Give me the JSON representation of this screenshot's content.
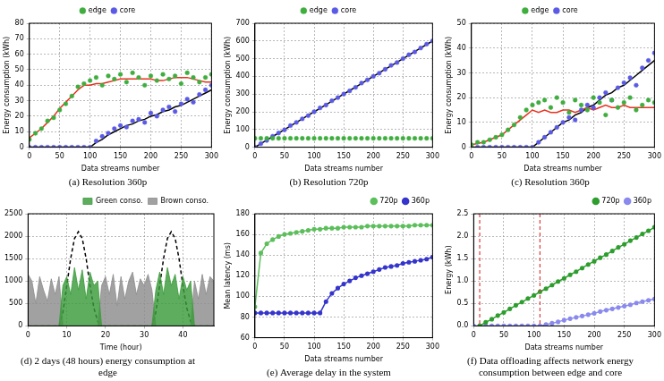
{
  "chart_data": [
    {
      "type": "scatter",
      "title": "(a) Resolution 360p",
      "xlabel": "Data streams number",
      "ylabel": "Energy consumption (kWh)",
      "xlim": [
        0,
        300
      ],
      "xticks": [
        0,
        50,
        100,
        150,
        200,
        250,
        300
      ],
      "ylim": [
        0,
        80
      ],
      "yticks": [
        0,
        10,
        20,
        30,
        40,
        50,
        60,
        70,
        80
      ],
      "grid": true,
      "legend": "top",
      "x": [
        0,
        10,
        20,
        30,
        40,
        50,
        60,
        70,
        80,
        90,
        100,
        110,
        120,
        130,
        140,
        150,
        160,
        170,
        180,
        190,
        200,
        210,
        220,
        230,
        240,
        250,
        260,
        270,
        280,
        290,
        300
      ],
      "series": [
        {
          "name": "edge",
          "type": "scatter",
          "marker": "circle",
          "color": "#3fae3f",
          "values": [
            5,
            9,
            12,
            17,
            19,
            24,
            28,
            33,
            39,
            41,
            43,
            45,
            40,
            46,
            44,
            47,
            42,
            48,
            45,
            40,
            46,
            43,
            47,
            44,
            46,
            41,
            48,
            45,
            42,
            45,
            47
          ]
        },
        {
          "name": "core",
          "type": "scatter",
          "marker": "circle",
          "color": "#5a5ae6",
          "values": [
            0,
            0,
            0,
            0,
            0,
            0,
            0,
            0,
            0,
            0,
            0,
            4,
            7,
            9,
            12,
            14,
            13,
            17,
            18,
            16,
            22,
            20,
            24,
            26,
            23,
            28,
            31,
            29,
            34,
            37,
            40
          ]
        },
        {
          "type": "line",
          "line_style": "solid",
          "color": "#e8321e",
          "values": [
            6,
            9,
            12,
            16,
            20,
            25,
            29,
            33,
            37,
            40,
            40,
            41,
            41,
            42,
            43,
            44,
            44,
            44,
            44,
            44,
            44,
            43,
            43,
            44,
            45,
            45,
            45,
            44,
            43,
            42,
            42
          ]
        },
        {
          "type": "line",
          "line_style": "solid",
          "color": "#000000",
          "values": [
            0,
            0,
            0,
            0,
            0,
            0,
            0,
            0,
            0,
            0,
            0,
            3,
            5,
            8,
            10,
            12,
            14,
            15,
            17,
            18,
            20,
            21,
            23,
            24,
            26,
            27,
            29,
            31,
            33,
            35,
            37
          ]
        }
      ]
    },
    {
      "type": "scatter",
      "title": "(b) Resolution 720p",
      "xlabel": "Data streams number",
      "ylabel": "Energy consumption (kWh)",
      "xlim": [
        0,
        300
      ],
      "xticks": [
        0,
        50,
        100,
        150,
        200,
        250,
        300
      ],
      "ylim": [
        0,
        700
      ],
      "yticks": [
        0,
        100,
        200,
        300,
        400,
        500,
        600,
        700
      ],
      "grid": true,
      "legend": "top",
      "x": [
        0,
        10,
        20,
        30,
        40,
        50,
        60,
        70,
        80,
        90,
        100,
        110,
        120,
        130,
        140,
        150,
        160,
        170,
        180,
        190,
        200,
        210,
        220,
        230,
        240,
        250,
        260,
        270,
        280,
        290,
        300
      ],
      "series": [
        {
          "name": "edge",
          "type": "scatter",
          "marker": "circle",
          "color": "#3fae3f",
          "values": [
            50,
            50,
            50,
            50,
            50,
            50,
            50,
            50,
            50,
            50,
            50,
            50,
            50,
            50,
            50,
            50,
            50,
            50,
            50,
            50,
            50,
            50,
            50,
            50,
            50,
            50,
            50,
            50,
            50,
            50,
            50
          ]
        },
        {
          "name": "core",
          "type": "scatter",
          "marker": "circle",
          "color": "#5a5ae6",
          "values": [
            0,
            20,
            38,
            62,
            80,
            98,
            122,
            140,
            160,
            178,
            200,
            222,
            238,
            262,
            280,
            300,
            318,
            338,
            362,
            380,
            400,
            418,
            440,
            462,
            478,
            500,
            522,
            538,
            560,
            582,
            600
          ]
        },
        {
          "type": "line",
          "line_style": "solid",
          "color": "#000000",
          "values": [
            0,
            20,
            40,
            60,
            80,
            100,
            120,
            140,
            160,
            180,
            200,
            220,
            240,
            260,
            280,
            300,
            320,
            340,
            360,
            380,
            400,
            420,
            440,
            460,
            480,
            500,
            520,
            540,
            560,
            580,
            600
          ]
        }
      ]
    },
    {
      "type": "scatter",
      "title": "(c) Resolution 360p",
      "xlabel": "Data streams number",
      "ylabel": "Energy consumption (kWh)",
      "xlim": [
        0,
        300
      ],
      "xticks": [
        0,
        50,
        100,
        150,
        200,
        250,
        300
      ],
      "ylim": [
        0,
        50
      ],
      "yticks": [
        0,
        10,
        20,
        30,
        40,
        50
      ],
      "grid": true,
      "legend": "top",
      "x": [
        0,
        10,
        20,
        30,
        40,
        50,
        60,
        70,
        80,
        90,
        100,
        110,
        120,
        130,
        140,
        150,
        160,
        170,
        180,
        190,
        200,
        210,
        220,
        230,
        240,
        250,
        260,
        270,
        280,
        290,
        300
      ],
      "series": [
        {
          "name": "edge",
          "type": "scatter",
          "marker": "circle",
          "color": "#3fae3f",
          "values": [
            1,
            2,
            2,
            3,
            4,
            5,
            7,
            9,
            12,
            15,
            17,
            18,
            19,
            16,
            20,
            18,
            14,
            19,
            17,
            15,
            20,
            18,
            13,
            19,
            16,
            18,
            20,
            15,
            17,
            19,
            18
          ]
        },
        {
          "name": "core",
          "type": "scatter",
          "marker": "circle",
          "color": "#5a5ae6",
          "values": [
            0,
            0,
            0,
            0,
            0,
            0,
            0,
            0,
            0,
            0,
            0,
            2,
            4,
            6,
            8,
            10,
            12,
            11,
            15,
            17,
            16,
            20,
            22,
            19,
            24,
            26,
            28,
            25,
            32,
            35,
            38
          ]
        },
        {
          "type": "line",
          "line_style": "solid",
          "color": "#e8321e",
          "values": [
            1,
            1.5,
            2,
            3,
            4,
            5,
            7,
            9,
            11,
            13,
            15,
            14,
            15,
            14,
            14,
            15,
            15,
            14,
            15,
            16,
            15,
            16,
            17,
            16,
            16,
            17,
            16,
            16,
            16,
            16,
            16
          ]
        },
        {
          "type": "line",
          "line_style": "solid",
          "color": "#000000",
          "values": [
            0,
            0,
            0,
            0,
            0,
            0,
            0,
            0,
            0,
            0,
            0,
            2,
            4,
            6,
            8,
            10,
            11,
            13,
            14,
            16,
            17,
            19,
            21,
            22,
            24,
            25,
            27,
            29,
            31,
            33,
            35
          ]
        }
      ]
    },
    {
      "type": "area",
      "title": "(d) 2 days (48 hours) energy consumption at edge",
      "xlabel": "Time (hour)",
      "xlim": [
        0,
        48
      ],
      "xticks": [
        0,
        10,
        20,
        30,
        40
      ],
      "ylim": [
        0,
        2500
      ],
      "yticks": [
        0,
        500,
        1000,
        1500,
        2000,
        2500
      ],
      "grid": true,
      "legend": "upper right",
      "x": [
        0,
        1,
        2,
        3,
        4,
        5,
        6,
        7,
        8,
        9,
        10,
        11,
        12,
        13,
        14,
        15,
        16,
        17,
        18,
        19,
        20,
        21,
        22,
        23,
        24,
        25,
        26,
        27,
        28,
        29,
        30,
        31,
        32,
        33,
        34,
        35,
        36,
        37,
        38,
        39,
        40,
        41,
        42,
        43,
        44,
        45,
        46,
        47,
        48
      ],
      "series": [
        {
          "name": "Green conso.",
          "type": "area",
          "color": "#3a9a3a",
          "values": [
            0,
            0,
            0,
            0,
            0,
            0,
            0,
            0,
            0,
            900,
            1100,
            700,
            1300,
            800,
            1250,
            600,
            1200,
            900,
            1000,
            0,
            0,
            0,
            0,
            0,
            0,
            0,
            0,
            0,
            0,
            0,
            0,
            0,
            0,
            800,
            1200,
            700,
            1300,
            900,
            1150,
            600,
            1100,
            800,
            1000,
            0,
            0,
            0,
            0,
            0,
            0
          ]
        },
        {
          "name": "Brown conso.",
          "type": "area",
          "color": "#8c8c8c",
          "values": [
            1150,
            1000,
            500,
            1100,
            800,
            550,
            1050,
            700,
            1100,
            0,
            0,
            0,
            0,
            0,
            0,
            0,
            0,
            0,
            0,
            900,
            1100,
            700,
            1150,
            450,
            1100,
            600,
            1000,
            1200,
            700,
            1050,
            900,
            1150,
            800,
            0,
            0,
            0,
            0,
            0,
            0,
            0,
            0,
            0,
            0,
            1000,
            600,
            1150,
            700,
            1100,
            1000
          ]
        },
        {
          "type": "line",
          "line_style": "dashed",
          "color": "#000000",
          "values": [
            0,
            0,
            0,
            0,
            0,
            0,
            0,
            0,
            0,
            300,
            900,
            1500,
            1950,
            2100,
            1950,
            1500,
            900,
            400,
            100,
            0,
            0,
            0,
            0,
            0,
            0,
            0,
            0,
            0,
            0,
            0,
            0,
            0,
            0,
            300,
            900,
            1500,
            1950,
            2100,
            1950,
            1500,
            900,
            400,
            100,
            0,
            0,
            0,
            0,
            0,
            0
          ]
        }
      ]
    },
    {
      "type": "line",
      "title": "(e) Average delay in the system",
      "xlabel": "Data streams number",
      "ylabel": "Mean latency (ms)",
      "xlim": [
        0,
        300
      ],
      "xticks": [
        0,
        50,
        100,
        150,
        200,
        250,
        300
      ],
      "ylim": [
        60,
        180
      ],
      "yticks": [
        60,
        80,
        100,
        120,
        140,
        160,
        180
      ],
      "grid": true,
      "legend": "lower right",
      "x": [
        0,
        10,
        20,
        30,
        40,
        50,
        60,
        70,
        80,
        90,
        100,
        110,
        120,
        130,
        140,
        150,
        160,
        170,
        180,
        190,
        200,
        210,
        220,
        230,
        240,
        250,
        260,
        270,
        280,
        290,
        300
      ],
      "series": [
        {
          "name": "720p",
          "type": "line",
          "marker": "circle",
          "line_style": "solid",
          "color": "#5cbf5c",
          "values": [
            90,
            142,
            151,
            155,
            158,
            160,
            161,
            162,
            163,
            164,
            165,
            165,
            166,
            166,
            166,
            167,
            167,
            167,
            167,
            168,
            168,
            168,
            168,
            168,
            168,
            168,
            168,
            169,
            169,
            169,
            169
          ]
        },
        {
          "name": "360p",
          "type": "line",
          "marker": "circle",
          "line_style": "solid",
          "color": "#3535cc",
          "values": [
            84,
            84,
            84,
            84,
            84,
            84,
            84,
            84,
            84,
            84,
            84,
            84,
            95,
            103,
            108,
            112,
            115,
            118,
            120,
            122,
            124,
            126,
            128,
            129,
            130,
            132,
            133,
            134,
            135,
            136,
            138
          ]
        }
      ]
    },
    {
      "type": "line",
      "title": "(f) Data offloading affects network energy consumption between edge and core",
      "xlabel": "Data streams number",
      "ylabel": "Energy (kWh)",
      "xlim": [
        0,
        300
      ],
      "xticks": [
        0,
        50,
        100,
        150,
        200,
        250,
        300
      ],
      "ylim": [
        0,
        2.5
      ],
      "yticks": [
        {
          "value": 0,
          "label": "0.0"
        },
        {
          "value": 0.5,
          "label": "0.5"
        },
        {
          "value": 1,
          "label": "1.0"
        },
        {
          "value": 1.5,
          "label": "1.5"
        },
        {
          "value": 2,
          "label": "2.0"
        },
        {
          "value": 2.5,
          "label": "2.5"
        }
      ],
      "grid": true,
      "legend": "right",
      "x": [
        0,
        10,
        20,
        30,
        40,
        50,
        60,
        70,
        80,
        90,
        100,
        110,
        120,
        130,
        140,
        150,
        160,
        170,
        180,
        190,
        200,
        210,
        220,
        230,
        240,
        250,
        260,
        270,
        280,
        290,
        300
      ],
      "series": [
        {
          "name": "720p",
          "type": "line",
          "marker": "circle",
          "line_style": "solid",
          "color": "#2e9e2e",
          "values": [
            null,
            0,
            0.08,
            0.15,
            0.23,
            0.3,
            0.38,
            0.46,
            0.53,
            0.61,
            0.68,
            0.76,
            0.83,
            0.91,
            0.99,
            1.06,
            1.14,
            1.21,
            1.29,
            1.37,
            1.44,
            1.52,
            1.59,
            1.67,
            1.75,
            1.82,
            1.9,
            1.97,
            2.05,
            2.12,
            2.2
          ]
        },
        {
          "name": "360p",
          "type": "line",
          "marker": "circle",
          "line_style": "solid",
          "color": "#8a8aee",
          "values": [
            0,
            0,
            0,
            0,
            0,
            0,
            0,
            0,
            0,
            0,
            0,
            0,
            0.03,
            0.06,
            0.09,
            0.13,
            0.16,
            0.19,
            0.22,
            0.25,
            0.28,
            0.32,
            0.35,
            0.38,
            0.41,
            0.44,
            0.47,
            0.51,
            0.54,
            0.57,
            0.6
          ]
        },
        {
          "type": "vline",
          "line_style": "dashed",
          "color": "#e03a3a",
          "x": [
            10,
            110
          ]
        }
      ]
    }
  ]
}
